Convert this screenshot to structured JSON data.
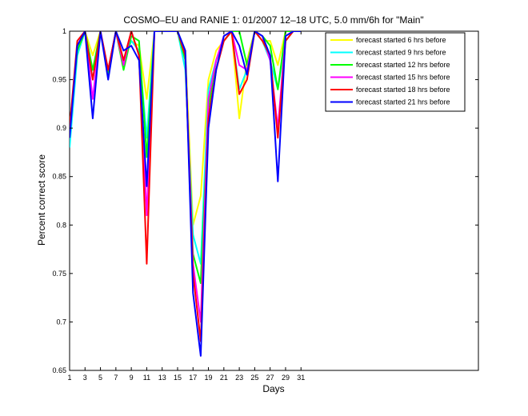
{
  "chart_data": {
    "type": "line",
    "title": "COSMO–EU and RANIE 1: 01/2007 12–18 UTC, 5.0 mm/6h for \"Main\"",
    "xlabel": "Days",
    "ylabel": "Percent correct score",
    "xlim": [
      1,
      54
    ],
    "ylim": [
      0.65,
      1.0
    ],
    "x_ticks": [
      1,
      3,
      5,
      7,
      9,
      11,
      13,
      15,
      17,
      19,
      21,
      23,
      25,
      27,
      29,
      31
    ],
    "y_ticks": [
      0.65,
      0.7,
      0.75,
      0.8,
      0.85,
      0.9,
      0.95,
      1.0
    ],
    "y_tick_labels": [
      "0.65",
      "0.7",
      "0.75",
      "0.8",
      "0.85",
      "0.9",
      "0.95",
      "1"
    ],
    "legend_position": "top-right",
    "grid": false,
    "x": [
      1,
      2,
      3,
      4,
      5,
      6,
      7,
      8,
      9,
      10,
      11,
      12,
      13,
      14,
      15,
      16,
      17,
      18,
      19,
      20,
      21,
      22,
      23,
      24,
      25,
      26,
      27,
      28,
      29,
      30,
      31
    ],
    "series": [
      {
        "name": "forecast started 6 hrs before",
        "color": "#ffff00",
        "values": [
          0.9,
          0.98,
          1.0,
          0.975,
          1.0,
          0.96,
          1.0,
          0.97,
          0.99,
          0.985,
          0.93,
          1.0,
          1.0,
          1.0,
          1.0,
          0.98,
          0.8,
          0.83,
          0.95,
          0.98,
          0.99,
          1.0,
          0.91,
          0.97,
          1.0,
          0.99,
          0.99,
          0.965,
          1.0,
          1.0,
          1.0
        ]
      },
      {
        "name": "forecast started 9 hrs before",
        "color": "#00ffff",
        "values": [
          0.88,
          0.975,
          1.0,
          0.95,
          1.0,
          0.96,
          1.0,
          0.97,
          0.99,
          0.98,
          0.89,
          1.0,
          1.0,
          1.0,
          1.0,
          0.96,
          0.79,
          0.76,
          0.94,
          0.97,
          0.99,
          1.0,
          0.94,
          0.96,
          1.0,
          0.99,
          0.97,
          0.94,
          0.99,
          1.0,
          1.0
        ]
      },
      {
        "name": "forecast started 12 hrs before",
        "color": "#00ff00",
        "values": [
          0.9,
          0.98,
          1.0,
          0.96,
          1.0,
          0.955,
          1.0,
          0.96,
          0.995,
          0.99,
          0.87,
          1.0,
          1.0,
          1.0,
          1.0,
          0.97,
          0.77,
          0.74,
          0.92,
          0.97,
          0.99,
          1.0,
          1.0,
          0.965,
          1.0,
          0.995,
          0.985,
          0.94,
          1.0,
          1.0,
          1.0
        ]
      },
      {
        "name": "forecast started 15 hrs before",
        "color": "#ff00ff",
        "values": [
          0.9,
          0.985,
          1.0,
          0.93,
          1.0,
          0.96,
          1.0,
          0.965,
          1.0,
          0.975,
          0.81,
          1.0,
          1.0,
          1.0,
          1.0,
          0.975,
          0.76,
          0.7,
          0.93,
          0.97,
          0.995,
          1.0,
          0.965,
          0.96,
          1.0,
          0.995,
          0.97,
          0.9,
          0.995,
          1.0,
          1.0
        ]
      },
      {
        "name": "forecast started 18 hrs before",
        "color": "#ff0000",
        "values": [
          0.9,
          0.99,
          1.0,
          0.95,
          1.0,
          0.96,
          1.0,
          0.97,
          1.0,
          0.975,
          0.76,
          1.0,
          1.0,
          1.0,
          1.0,
          0.975,
          0.75,
          0.68,
          0.91,
          0.96,
          0.99,
          1.0,
          0.935,
          0.95,
          1.0,
          0.99,
          0.975,
          0.89,
          0.99,
          1.0,
          1.0
        ]
      },
      {
        "name": "forecast started 21 hrs before",
        "color": "#0000ff",
        "values": [
          0.89,
          0.985,
          1.0,
          0.91,
          1.0,
          0.95,
          1.0,
          0.98,
          0.985,
          0.97,
          0.84,
          1.0,
          1.0,
          1.0,
          1.0,
          0.98,
          0.73,
          0.665,
          0.9,
          0.96,
          0.995,
          1.0,
          0.985,
          0.955,
          1.0,
          0.995,
          0.975,
          0.845,
          0.995,
          1.0,
          1.0
        ]
      }
    ]
  }
}
